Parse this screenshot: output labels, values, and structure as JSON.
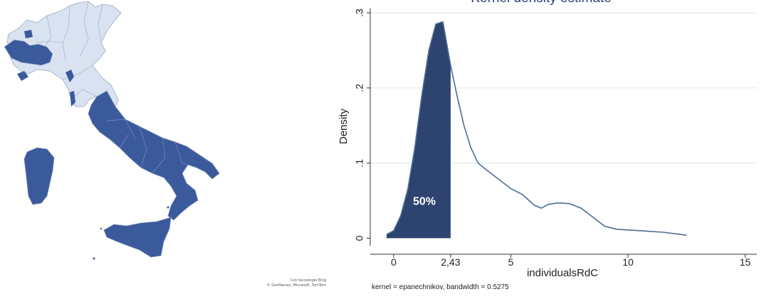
{
  "map": {
    "credit_line1": "Con tecnologie Bing",
    "credit_line2": "© GeoNames, Microsoft, TomTom",
    "colors": {
      "highlight": "#3a5a9c",
      "base": "#d9e2f0",
      "border": "#a9b7cc"
    }
  },
  "chart_data": {
    "type": "area",
    "title": "Kernel density estimate",
    "xlabel": "individualsRdC",
    "ylabel": "Density",
    "xlim": [
      -1,
      15.5
    ],
    "ylim": [
      -0.01,
      0.3
    ],
    "x_ticks": [
      {
        "value": 0,
        "label": "0"
      },
      {
        "value": 2.43,
        "label": "2,43"
      },
      {
        "value": 5,
        "label": "5"
      },
      {
        "value": 10,
        "label": "10"
      },
      {
        "value": 15,
        "label": "15"
      }
    ],
    "y_ticks": [
      {
        "value": 0,
        "label": "0"
      },
      {
        "value": 0.1,
        "label": ".1"
      },
      {
        "value": 0.2,
        "label": ".2"
      },
      {
        "value": 0.3,
        "label": ".3"
      }
    ],
    "grid": true,
    "note": "kernel = epanechnikov, bandwidth = 0.5275",
    "shaded_label": "50%",
    "shade_until": 2.43,
    "series": [
      {
        "x": [
          -0.3,
          0,
          0.3,
          0.6,
          0.9,
          1.2,
          1.5,
          1.8,
          2.1,
          2.43,
          2.7,
          3.0,
          3.3,
          3.6,
          4.0,
          4.5,
          5.0,
          5.5,
          6.0,
          6.3,
          6.6,
          7.0,
          7.5,
          8.0,
          8.5,
          9.0,
          9.5,
          10.0,
          10.5,
          11.0,
          11.5,
          12.0,
          12.5
        ],
        "y": [
          0.005,
          0.01,
          0.03,
          0.065,
          0.12,
          0.19,
          0.25,
          0.285,
          0.288,
          0.23,
          0.19,
          0.15,
          0.12,
          0.1,
          0.09,
          0.078,
          0.066,
          0.058,
          0.044,
          0.04,
          0.045,
          0.047,
          0.046,
          0.04,
          0.028,
          0.016,
          0.012,
          0.011,
          0.01,
          0.009,
          0.008,
          0.006,
          0.004
        ]
      }
    ],
    "colors": {
      "fill": "#2d4470",
      "line": "#4d6c95",
      "grid": "#e3ecf1",
      "axis": "#333333",
      "title": "#2b3f78"
    }
  }
}
